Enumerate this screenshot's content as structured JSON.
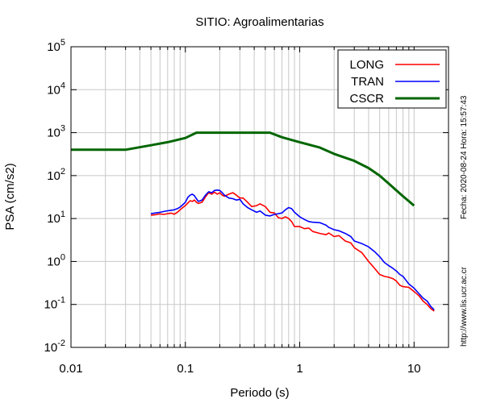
{
  "chart_data": {
    "type": "line",
    "title": "SITIO: Agroalimentarias",
    "xlabel": "Periodo (s)",
    "ylabel": "PSA (cm/s2)",
    "xscale": "log",
    "yscale": "log",
    "xlim": [
      0.01,
      20
    ],
    "ylim": [
      0.01,
      100000
    ],
    "x_ticks": [
      {
        "v": 0.01,
        "label": "0.01"
      },
      {
        "v": 0.1,
        "label": "0.1"
      },
      {
        "v": 1,
        "label": "1"
      },
      {
        "v": 10,
        "label": "10"
      }
    ],
    "y_ticks": [
      {
        "v": 0.01,
        "base": "10",
        "exp": "-2"
      },
      {
        "v": 0.1,
        "base": "10",
        "exp": "-1"
      },
      {
        "v": 1,
        "base": "10",
        "exp": "0"
      },
      {
        "v": 10,
        "base": "10",
        "exp": "1"
      },
      {
        "v": 100,
        "base": "10",
        "exp": "2"
      },
      {
        "v": 1000,
        "base": "10",
        "exp": "3"
      },
      {
        "v": 10000,
        "base": "10",
        "exp": "4"
      },
      {
        "v": 100000,
        "base": "10",
        "exp": "5"
      }
    ],
    "grid": true,
    "legend_position": "top-right",
    "series": [
      {
        "name": "LONG",
        "color": "#ff0000",
        "points": [
          [
            0.05,
            12
          ],
          [
            0.055,
            12.3
          ],
          [
            0.06,
            12.8
          ],
          [
            0.065,
            12.5
          ],
          [
            0.07,
            13
          ],
          [
            0.075,
            13.4
          ],
          [
            0.08,
            12.6
          ],
          [
            0.085,
            14
          ],
          [
            0.09,
            16
          ],
          [
            0.095,
            18
          ],
          [
            0.1,
            20
          ],
          [
            0.105,
            23
          ],
          [
            0.11,
            26
          ],
          [
            0.115,
            25
          ],
          [
            0.12,
            27
          ],
          [
            0.125,
            24
          ],
          [
            0.13,
            22.5
          ],
          [
            0.14,
            24
          ],
          [
            0.15,
            32
          ],
          [
            0.16,
            40
          ],
          [
            0.17,
            37
          ],
          [
            0.18,
            41
          ],
          [
            0.19,
            37
          ],
          [
            0.2,
            40
          ],
          [
            0.21,
            35
          ],
          [
            0.22,
            33
          ],
          [
            0.24,
            37
          ],
          [
            0.26,
            40
          ],
          [
            0.28,
            35
          ],
          [
            0.3,
            30
          ],
          [
            0.32,
            30
          ],
          [
            0.35,
            24
          ],
          [
            0.38,
            19
          ],
          [
            0.42,
            20
          ],
          [
            0.45,
            22
          ],
          [
            0.5,
            19
          ],
          [
            0.55,
            14
          ],
          [
            0.6,
            13.5
          ],
          [
            0.65,
            10.5
          ],
          [
            0.7,
            10
          ],
          [
            0.75,
            11
          ],
          [
            0.8,
            10
          ],
          [
            0.85,
            8.5
          ],
          [
            0.9,
            6.5
          ],
          [
            1.0,
            6.5
          ],
          [
            1.1,
            5.8
          ],
          [
            1.2,
            6
          ],
          [
            1.3,
            5
          ],
          [
            1.5,
            4.5
          ],
          [
            1.7,
            4.2
          ],
          [
            1.8,
            4.6
          ],
          [
            2.0,
            3.8
          ],
          [
            2.2,
            4
          ],
          [
            2.5,
            3
          ],
          [
            2.8,
            2.7
          ],
          [
            3.0,
            2.1
          ],
          [
            3.5,
            1.6
          ],
          [
            4.0,
            1.0
          ],
          [
            4.5,
            0.7
          ],
          [
            5.0,
            0.5
          ],
          [
            5.5,
            0.45
          ],
          [
            6.0,
            0.43
          ],
          [
            6.5,
            0.4
          ],
          [
            7.0,
            0.35
          ],
          [
            7.5,
            0.28
          ],
          [
            8.0,
            0.26
          ],
          [
            9.0,
            0.25
          ],
          [
            10.0,
            0.2
          ],
          [
            11.0,
            0.16
          ],
          [
            12.0,
            0.12
          ],
          [
            13.0,
            0.1
          ],
          [
            14.0,
            0.08
          ],
          [
            15.0,
            0.07
          ]
        ]
      },
      {
        "name": "TRAN",
        "color": "#0000ff",
        "points": [
          [
            0.05,
            13
          ],
          [
            0.055,
            13.5
          ],
          [
            0.06,
            14
          ],
          [
            0.065,
            14.6
          ],
          [
            0.07,
            15.2
          ],
          [
            0.075,
            15.6
          ],
          [
            0.08,
            16
          ],
          [
            0.085,
            17
          ],
          [
            0.09,
            18.5
          ],
          [
            0.095,
            21
          ],
          [
            0.1,
            24
          ],
          [
            0.105,
            31
          ],
          [
            0.11,
            35
          ],
          [
            0.115,
            37
          ],
          [
            0.12,
            34
          ],
          [
            0.125,
            29
          ],
          [
            0.13,
            25
          ],
          [
            0.14,
            27
          ],
          [
            0.15,
            35
          ],
          [
            0.16,
            42
          ],
          [
            0.17,
            40
          ],
          [
            0.18,
            45
          ],
          [
            0.19,
            46
          ],
          [
            0.2,
            45
          ],
          [
            0.21,
            40
          ],
          [
            0.22,
            35
          ],
          [
            0.24,
            30
          ],
          [
            0.26,
            29
          ],
          [
            0.28,
            27
          ],
          [
            0.3,
            28
          ],
          [
            0.32,
            22
          ],
          [
            0.35,
            18
          ],
          [
            0.38,
            16
          ],
          [
            0.42,
            14
          ],
          [
            0.45,
            15
          ],
          [
            0.5,
            12
          ],
          [
            0.55,
            11.5
          ],
          [
            0.6,
            12.5
          ],
          [
            0.65,
            13
          ],
          [
            0.7,
            13.5
          ],
          [
            0.75,
            16
          ],
          [
            0.8,
            18
          ],
          [
            0.85,
            17
          ],
          [
            0.9,
            14
          ],
          [
            1.0,
            11
          ],
          [
            1.1,
            9.5
          ],
          [
            1.2,
            8.5
          ],
          [
            1.3,
            8.2
          ],
          [
            1.5,
            8
          ],
          [
            1.7,
            7
          ],
          [
            1.8,
            6.2
          ],
          [
            2.0,
            5.5
          ],
          [
            2.2,
            5.2
          ],
          [
            2.5,
            4.5
          ],
          [
            2.8,
            3.8
          ],
          [
            3.0,
            3.0
          ],
          [
            3.5,
            2.6
          ],
          [
            4.0,
            2.2
          ],
          [
            4.5,
            1.7
          ],
          [
            5.0,
            1.3
          ],
          [
            5.5,
            0.95
          ],
          [
            6.0,
            0.8
          ],
          [
            6.5,
            0.7
          ],
          [
            7.0,
            0.6
          ],
          [
            7.5,
            0.5
          ],
          [
            8.0,
            0.45
          ],
          [
            9.0,
            0.3
          ],
          [
            10.0,
            0.24
          ],
          [
            11.0,
            0.18
          ],
          [
            12.0,
            0.14
          ],
          [
            13.0,
            0.12
          ],
          [
            14.0,
            0.09
          ],
          [
            15.0,
            0.075
          ]
        ]
      },
      {
        "name": "CSCR",
        "color": "#006600",
        "points": [
          [
            0.01,
            400
          ],
          [
            0.03,
            400
          ],
          [
            0.05,
            510
          ],
          [
            0.07,
            600
          ],
          [
            0.1,
            750
          ],
          [
            0.125,
            1000
          ],
          [
            0.3,
            1000
          ],
          [
            0.55,
            1000
          ],
          [
            0.7,
            780
          ],
          [
            1.0,
            600
          ],
          [
            1.5,
            450
          ],
          [
            2.0,
            320
          ],
          [
            2.5,
            260
          ],
          [
            3.0,
            220
          ],
          [
            4.0,
            150
          ],
          [
            5.0,
            100
          ],
          [
            6.0,
            65
          ],
          [
            7.0,
            45
          ],
          [
            8.0,
            33
          ],
          [
            10.0,
            20
          ]
        ]
      }
    ],
    "side_labels": {
      "date_text": "Fecha: 2020-08-24 Hora: 15:57:43",
      "url_text": "http://www.lis.ucr.ac.cr"
    }
  }
}
